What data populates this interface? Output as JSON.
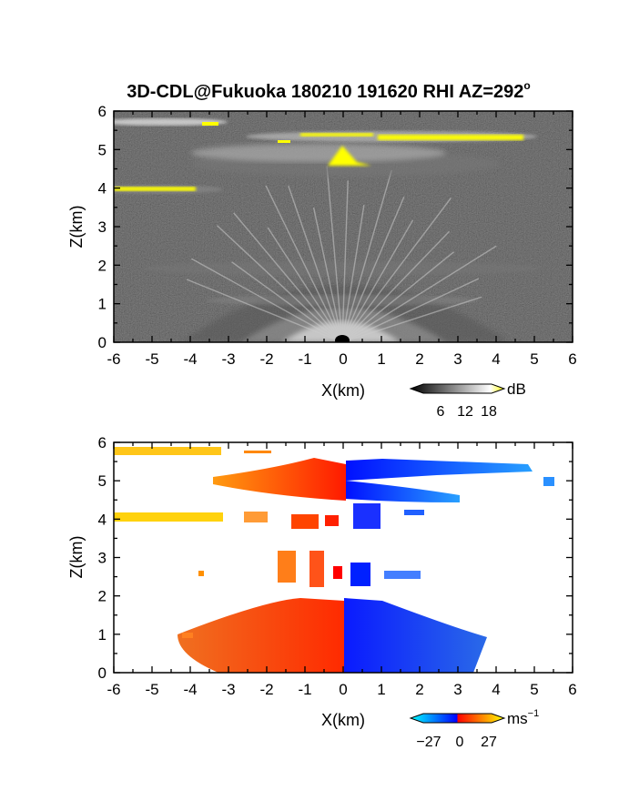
{
  "title": {
    "main": "3D-CDL@Fukuoka 180210 191620 RHI AZ=292",
    "superscript": "o"
  },
  "chart_data": [
    {
      "type": "heatmap",
      "quantity": "backscatter intensity (RHI)",
      "xlabel": "X(km)",
      "ylabel": "Z(km)",
      "xlim": [
        -6,
        6
      ],
      "ylim": [
        0,
        6
      ],
      "xticks": [
        "-6",
        "-5",
        "-4",
        "-3",
        "-2",
        "-1",
        "0",
        "1",
        "2",
        "3",
        "4",
        "5",
        "6"
      ],
      "yticks": [
        "0",
        "1",
        "2",
        "3",
        "4",
        "5",
        "6"
      ],
      "colorbar": {
        "unit": "dB",
        "ticks": [
          "6",
          "12",
          "18"
        ],
        "range": [
          0,
          21
        ],
        "colors": [
          "#000000",
          "#ffffff",
          "#ffff00"
        ]
      },
      "layers": [
        {
          "name": "upper cloud band",
          "x": [
            -6,
            4.7
          ],
          "z": [
            5.2,
            5.9
          ],
          "max_dB": 21
        },
        {
          "name": "mid cloud layer",
          "x": [
            -6,
            -3.7
          ],
          "z": [
            3.9,
            4.1
          ],
          "max_dB": 21
        },
        {
          "name": "ground clutter",
          "x": [
            -3,
            3
          ],
          "z": [
            0,
            1.6
          ],
          "max_dB": 15
        }
      ]
    },
    {
      "type": "heatmap",
      "quantity": "radial velocity (RHI)",
      "xlabel": "X(km)",
      "ylabel": "Z(km)",
      "xlim": [
        -6,
        6
      ],
      "ylim": [
        0,
        6
      ],
      "xticks": [
        "-6",
        "-5",
        "-4",
        "-3",
        "-2",
        "-1",
        "0",
        "1",
        "2",
        "3",
        "4",
        "5",
        "6"
      ],
      "yticks": [
        "0",
        "1",
        "2",
        "3",
        "4",
        "5",
        "6"
      ],
      "colorbar": {
        "unit": "ms",
        "unit_exp": "−1",
        "ticks": [
          "−27",
          "0",
          "27"
        ],
        "range": [
          -27,
          27
        ],
        "colors": [
          "#00ffff",
          "#0000ff",
          "#ff0000",
          "#ffff00"
        ]
      },
      "regions": [
        {
          "x": [
            -6,
            -3.3
          ],
          "z": [
            5.6,
            5.85
          ],
          "velocity": 25
        },
        {
          "x": [
            -3.3,
            0
          ],
          "z": [
            4.7,
            5.5
          ],
          "velocity": 12
        },
        {
          "x": [
            0,
            4.8
          ],
          "z": [
            4.6,
            5.5
          ],
          "velocity": -12
        },
        {
          "x": [
            -6,
            -3.2
          ],
          "z": [
            3.9,
            4.15
          ],
          "velocity": 26
        },
        {
          "x": [
            -1.5,
            -0.3
          ],
          "z": [
            3.9,
            4.15
          ],
          "velocity": 8
        },
        {
          "x": [
            0.3,
            1
          ],
          "z": [
            3.8,
            4.2
          ],
          "velocity": -12
        },
        {
          "x": [
            -3,
            0
          ],
          "z": [
            0,
            1.8
          ],
          "velocity": 12
        },
        {
          "x": [
            0,
            3.5
          ],
          "z": [
            0,
            1.8
          ],
          "velocity": -12
        }
      ]
    }
  ]
}
